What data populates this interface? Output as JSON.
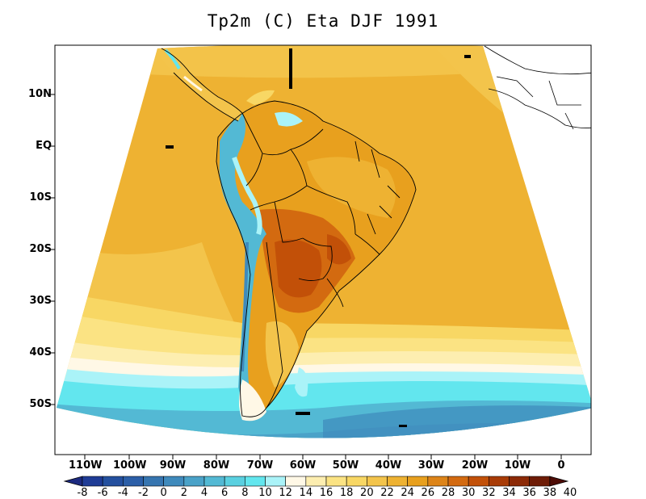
{
  "title": "Tp2m (C) Eta DJF 1991",
  "lat_labels": [
    "10N",
    "EQ",
    "10S",
    "20S",
    "30S",
    "40S",
    "50S"
  ],
  "lon_labels": [
    "110W",
    "100W",
    "90W",
    "80W",
    "70W",
    "60W",
    "50W",
    "40W",
    "30W",
    "20W",
    "10W",
    "0"
  ],
  "colorbar": {
    "labels": [
      "-8",
      "-6",
      "-4",
      "-2",
      "0",
      "2",
      "4",
      "6",
      "8",
      "10",
      "12",
      "14",
      "16",
      "18",
      "20",
      "22",
      "24",
      "26",
      "28",
      "30",
      "32",
      "34",
      "36",
      "38",
      "40"
    ],
    "colors": [
      "#1c2a80",
      "#1f3c96",
      "#24509f",
      "#2c5fa8",
      "#3675b0",
      "#3f8abc",
      "#4aa2c8",
      "#53b9d4",
      "#5ad0e0",
      "#62e6ee",
      "#aaf3f8",
      "#fff8e6",
      "#fdeeb0",
      "#fbe383",
      "#f8d764",
      "#f3c44b",
      "#eeb232",
      "#e8a01e",
      "#dd8418",
      "#d36a10",
      "#c25008",
      "#a83b06",
      "#8c2a06",
      "#6e1c06",
      "#4e0c06"
    ]
  },
  "colors": {
    "ocean_main": "#eeb232",
    "ocean_north": "#f3c44b",
    "cold_band": "#62e6ee",
    "deep_cold": "#3f8abc",
    "land_hot": "#d36a10",
    "andes": "#53b9d4"
  }
}
